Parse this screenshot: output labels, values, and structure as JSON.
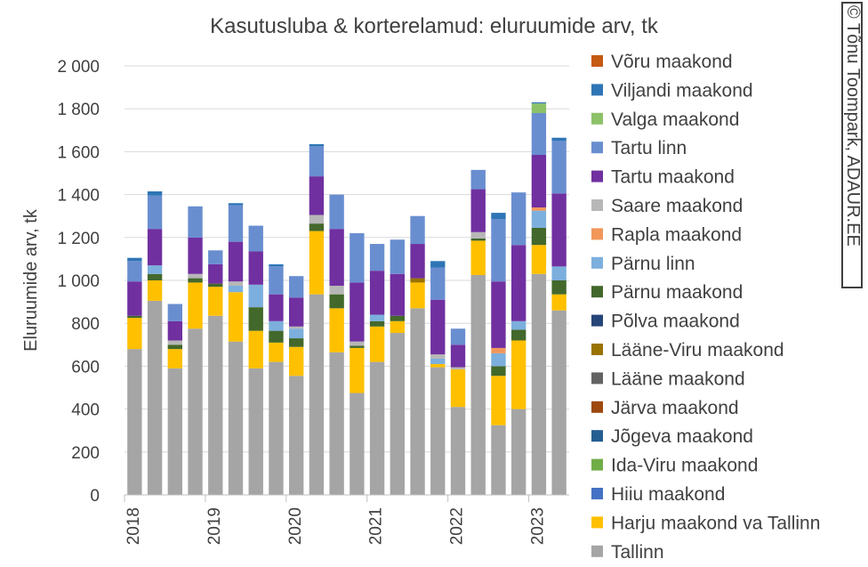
{
  "credit": "© Tõnu Toompark, ADAUR.EE",
  "chart_data": {
    "type": "bar",
    "stacked": true,
    "title": "Kasutusluba & korterelamud: eluruumide arv, tk",
    "ylabel": "Eluruumide arv, tk",
    "xlabel": "",
    "ylim": [
      0,
      2000
    ],
    "yticks": [
      0,
      200,
      400,
      600,
      800,
      1000,
      1200,
      1400,
      1600,
      1800,
      2000
    ],
    "ytick_labels": [
      "0",
      "200",
      "400",
      "600",
      "800",
      "1 000",
      "1 200",
      "1 400",
      "1 600",
      "1 800",
      "2 000"
    ],
    "grid": true,
    "legend_position": "right",
    "x_group_labels": [
      "2018",
      "2019",
      "2020",
      "2021",
      "2022",
      "2023"
    ],
    "categories": [
      "2018 Q1",
      "2018 Q2",
      "2018 Q3",
      "2018 Q4",
      "2019 Q1",
      "2019 Q2",
      "2019 Q3",
      "2019 Q4",
      "2020 Q1",
      "2020 Q2",
      "2020 Q3",
      "2020 Q4",
      "2021 Q1",
      "2021 Q2",
      "2021 Q3",
      "2021 Q4",
      "2022 Q1",
      "2022 Q2",
      "2022 Q3",
      "2022 Q4",
      "2023 Q1",
      "2023 Q2"
    ],
    "series": [
      {
        "name": "Tallinn",
        "color": "#a5a5a5",
        "values": [
          680,
          905,
          590,
          775,
          835,
          715,
          590,
          620,
          555,
          935,
          665,
          475,
          620,
          755,
          870,
          595,
          410,
          1025,
          325,
          400,
          1030,
          860
        ]
      },
      {
        "name": "Harju maakond va Tallinn",
        "color": "#ffc000",
        "values": [
          145,
          95,
          90,
          215,
          135,
          230,
          175,
          90,
          135,
          295,
          205,
          210,
          165,
          55,
          120,
          15,
          175,
          160,
          230,
          320,
          135,
          75
        ]
      },
      {
        "name": "Hiiu maakond",
        "color": "#4472c4",
        "values": [
          0,
          0,
          0,
          0,
          0,
          0,
          0,
          0,
          0,
          0,
          0,
          0,
          0,
          0,
          0,
          0,
          0,
          0,
          0,
          0,
          0,
          0
        ]
      },
      {
        "name": "Ida-Viru maakond",
        "color": "#70ad47",
        "values": [
          0,
          0,
          0,
          0,
          0,
          0,
          0,
          0,
          0,
          0,
          0,
          0,
          0,
          0,
          0,
          0,
          0,
          0,
          0,
          0,
          0,
          0
        ]
      },
      {
        "name": "Jõgeva maakond",
        "color": "#255e91",
        "values": [
          0,
          0,
          0,
          0,
          0,
          0,
          0,
          0,
          0,
          0,
          0,
          0,
          0,
          0,
          0,
          0,
          0,
          0,
          0,
          0,
          0,
          0
        ]
      },
      {
        "name": "Järva maakond",
        "color": "#9e480e",
        "values": [
          0,
          0,
          0,
          0,
          0,
          0,
          0,
          0,
          0,
          0,
          0,
          0,
          0,
          0,
          0,
          0,
          0,
          0,
          0,
          0,
          0,
          0
        ]
      },
      {
        "name": "Lääne maakond",
        "color": "#636363",
        "values": [
          0,
          0,
          0,
          0,
          0,
          0,
          0,
          0,
          0,
          0,
          0,
          0,
          0,
          0,
          0,
          0,
          0,
          0,
          0,
          0,
          0,
          0
        ]
      },
      {
        "name": "Lääne-Viru maakond",
        "color": "#997300",
        "values": [
          0,
          0,
          0,
          0,
          0,
          0,
          0,
          0,
          0,
          0,
          0,
          0,
          0,
          0,
          20,
          0,
          0,
          0,
          0,
          0,
          0,
          0
        ]
      },
      {
        "name": "Põlva maakond",
        "color": "#264478",
        "values": [
          0,
          0,
          0,
          0,
          0,
          0,
          0,
          0,
          0,
          0,
          0,
          0,
          0,
          0,
          0,
          0,
          0,
          0,
          0,
          0,
          0,
          0
        ]
      },
      {
        "name": "Pärnu maakond",
        "color": "#43682b",
        "values": [
          10,
          30,
          20,
          20,
          15,
          0,
          110,
          55,
          40,
          35,
          65,
          10,
          25,
          25,
          0,
          0,
          0,
          10,
          45,
          50,
          80,
          65
        ]
      },
      {
        "name": "Pärnu linn",
        "color": "#7cafdd",
        "values": [
          0,
          40,
          0,
          0,
          0,
          30,
          105,
          45,
          45,
          0,
          0,
          0,
          30,
          0,
          0,
          25,
          0,
          0,
          60,
          40,
          80,
          65
        ]
      },
      {
        "name": "Rapla maakond",
        "color": "#f1975a",
        "values": [
          0,
          0,
          0,
          0,
          0,
          0,
          0,
          0,
          0,
          0,
          0,
          0,
          0,
          0,
          0,
          0,
          0,
          0,
          25,
          0,
          15,
          0
        ]
      },
      {
        "name": "Saare maakond",
        "color": "#b7b7b7",
        "values": [
          0,
          0,
          20,
          20,
          0,
          20,
          0,
          0,
          10,
          40,
          40,
          20,
          0,
          0,
          0,
          20,
          10,
          30,
          0,
          0,
          0,
          0
        ]
      },
      {
        "name": "Tartu maakond",
        "color": "#7030a0",
        "values": [
          160,
          170,
          90,
          170,
          90,
          185,
          155,
          125,
          135,
          180,
          265,
          275,
          205,
          195,
          160,
          255,
          105,
          200,
          310,
          355,
          245,
          340
        ]
      },
      {
        "name": "Tartu linn",
        "color": "#698ed0",
        "values": [
          95,
          155,
          80,
          145,
          65,
          170,
          120,
          130,
          100,
          140,
          160,
          230,
          125,
          160,
          130,
          150,
          75,
          90,
          290,
          245,
          195,
          245
        ]
      },
      {
        "name": "Valga maakond",
        "color": "#8cc168",
        "values": [
          0,
          0,
          0,
          0,
          0,
          0,
          0,
          0,
          0,
          0,
          0,
          0,
          0,
          0,
          0,
          0,
          0,
          0,
          0,
          0,
          45,
          0
        ]
      },
      {
        "name": "Viljandi maakond",
        "color": "#2e75b6",
        "values": [
          15,
          20,
          0,
          0,
          0,
          10,
          0,
          10,
          0,
          10,
          0,
          0,
          0,
          0,
          0,
          30,
          0,
          0,
          30,
          0,
          5,
          15
        ]
      },
      {
        "name": "Võru maakond",
        "color": "#c55a11",
        "values": [
          0,
          0,
          0,
          0,
          0,
          0,
          0,
          0,
          0,
          0,
          0,
          0,
          0,
          0,
          0,
          0,
          0,
          0,
          0,
          0,
          0,
          0
        ]
      }
    ]
  }
}
